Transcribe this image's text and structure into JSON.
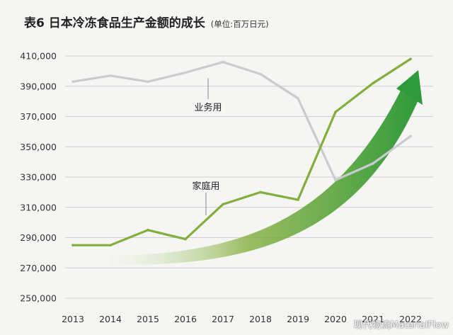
{
  "title": "表6  日本冷冻食品生产金额的成长",
  "unit_note": "(单位:百万日元)",
  "watermark": "现代物流MaterialFlow",
  "colors": {
    "business_line": "#c9ccce",
    "household_line": "#82ae3c",
    "arrow_dark": "#2f9a3a",
    "arrow_light": "#e9f3e4",
    "grid": "#cfcfcf"
  },
  "chart_data": {
    "type": "line",
    "x": [
      "2013",
      "2014",
      "2015",
      "2016",
      "2017",
      "2018",
      "2019",
      "2020",
      "2021",
      "2022"
    ],
    "ylim": [
      250000,
      410000
    ],
    "yticks": [
      "250,000",
      "270,000",
      "290,000",
      "310,000",
      "330,000",
      "350,000",
      "370,000",
      "390,000",
      "410,000"
    ],
    "grid": "horizontal",
    "series": [
      {
        "name": "业务用",
        "values": [
          393000,
          397000,
          393000,
          399000,
          406000,
          398000,
          382000,
          328000,
          339000,
          357000
        ]
      },
      {
        "name": "家庭用",
        "values": [
          285000,
          285000,
          295000,
          289000,
          312000,
          320000,
          315000,
          373000,
          392000,
          408000
        ]
      }
    ],
    "annotations": [
      "业务用",
      "家庭用"
    ]
  }
}
